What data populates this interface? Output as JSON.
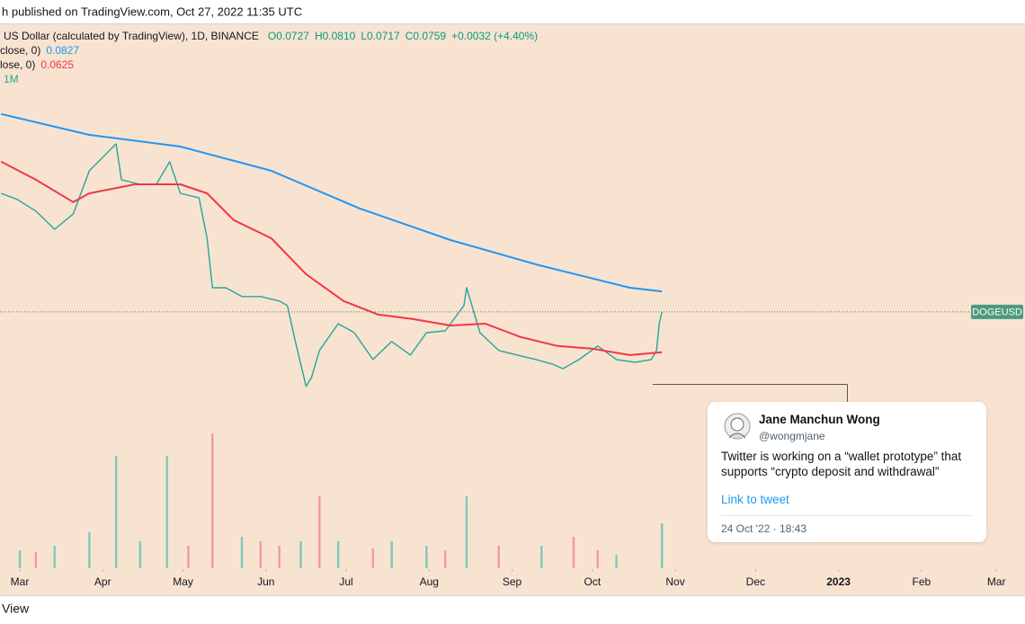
{
  "header": "h published on TradingView.com, Oct 27, 2022 11:35 UTC",
  "footer": "View",
  "chart_data": {
    "type": "line",
    "legend_title": "US Dollar (calculated by TradingView), 1D, BINANCE",
    "ohlc": [
      "O0.0727",
      "H0.0810",
      "L0.0717",
      "C0.0759",
      "+0.0032 (+4.40%)"
    ],
    "volume_legend": "1M",
    "price_tag": "DOGEUSD",
    "xlim": [
      51.6,
      434.7
    ],
    "ylim": [
      0.0392,
      0.1793
    ],
    "y2lim": [
      0,
      480
    ],
    "xticks": [
      {
        "value": 59,
        "label": "Mar"
      },
      {
        "value": 90,
        "label": "Apr"
      },
      {
        "value": 120,
        "label": "May"
      },
      {
        "value": 151,
        "label": "Jun"
      },
      {
        "value": 181,
        "label": "Jul"
      },
      {
        "value": 212,
        "label": "Aug"
      },
      {
        "value": 243,
        "label": "Sep"
      },
      {
        "value": 273,
        "label": "Oct"
      },
      {
        "value": 304,
        "label": "Nov"
      },
      {
        "value": 334,
        "label": "Dec"
      },
      {
        "value": 365,
        "label": "2023"
      },
      {
        "value": 396,
        "label": "Feb"
      },
      {
        "value": 424,
        "label": "Mar"
      }
    ],
    "series": [
      {
        "color": "#26a69a",
        "x": [
          52,
          58,
          65,
          72,
          79,
          85,
          95,
          97,
          104,
          110,
          115,
          119,
          126,
          129,
          131,
          136,
          142,
          149,
          156,
          159,
          162,
          166,
          168,
          171,
          178,
          184,
          191,
          198,
          205,
          211,
          218,
          225,
          226,
          228,
          231,
          238,
          245,
          252,
          258,
          262,
          268,
          275,
          282,
          289,
          295,
          297,
          298,
          299
        ],
        "values": [
          0.1152,
          0.1132,
          0.1093,
          0.1033,
          0.1084,
          0.1227,
          0.1316,
          0.1197,
          0.1182,
          0.1182,
          0.1257,
          0.1152,
          0.1137,
          0.1003,
          0.0839,
          0.0839,
          0.081,
          0.081,
          0.0795,
          0.078,
          0.0661,
          0.0512,
          0.0541,
          0.0631,
          0.072,
          0.069,
          0.0601,
          0.0661,
          0.0616,
          0.069,
          0.0696,
          0.078,
          0.0839,
          0.078,
          0.069,
          0.0631,
          0.0616,
          0.0601,
          0.0586,
          0.0571,
          0.0601,
          0.0646,
          0.0601,
          0.0592,
          0.0601,
          0.0631,
          0.072,
          0.0759
        ]
      },
      {
        "name": "close, 0)",
        "color": "#2196f3",
        "x": [
          52,
          85,
          119,
          153,
          186,
          220,
          253,
          287,
          299
        ],
        "values": [
          0.1415,
          0.1346,
          0.1307,
          0.1227,
          0.1102,
          0.0997,
          0.0914,
          0.0839,
          0.0827
        ]
      },
      {
        "name": "lose, 0)",
        "color": "#f23645",
        "x": [
          52,
          65,
          79,
          85,
          102,
          119,
          129,
          139,
          153,
          166,
          180,
          193,
          206,
          220,
          233,
          246,
          260,
          273,
          287,
          299
        ],
        "values": [
          0.1257,
          0.1197,
          0.1123,
          0.1152,
          0.1182,
          0.1182,
          0.1152,
          0.1063,
          0.1003,
          0.0884,
          0.0795,
          0.075,
          0.0735,
          0.0714,
          0.072,
          0.0676,
          0.0646,
          0.0637,
          0.0616,
          0.0625
        ]
      },
      {
        "color": "#7fc9bd",
        "axis": "y2",
        "x": [
          59,
          72,
          85,
          95,
          104,
          114,
          142,
          164,
          178,
          198,
          211,
          226,
          254,
          282,
          299
        ],
        "values": [
          20,
          25,
          40,
          125,
          30,
          125,
          35,
          30,
          30,
          30,
          25,
          80,
          25,
          15,
          50
        ]
      },
      {
        "color": "#f29a95",
        "axis": "y2",
        "x": [
          65,
          122,
          131,
          149,
          156,
          171,
          191,
          218,
          238,
          266,
          275
        ],
        "values": [
          18,
          25,
          150,
          30,
          25,
          80,
          22,
          20,
          25,
          35,
          20
        ]
      }
    ]
  },
  "tweet": {
    "name": "Jane Manchun Wong",
    "handle": "@wongmjane",
    "text": [
      "Twitter is working on a “wallet prototype” that",
      "supports “crypto deposit and withdrawal”"
    ],
    "link": "Link to tweet",
    "time": "24 Oct '22 · 18:43"
  }
}
